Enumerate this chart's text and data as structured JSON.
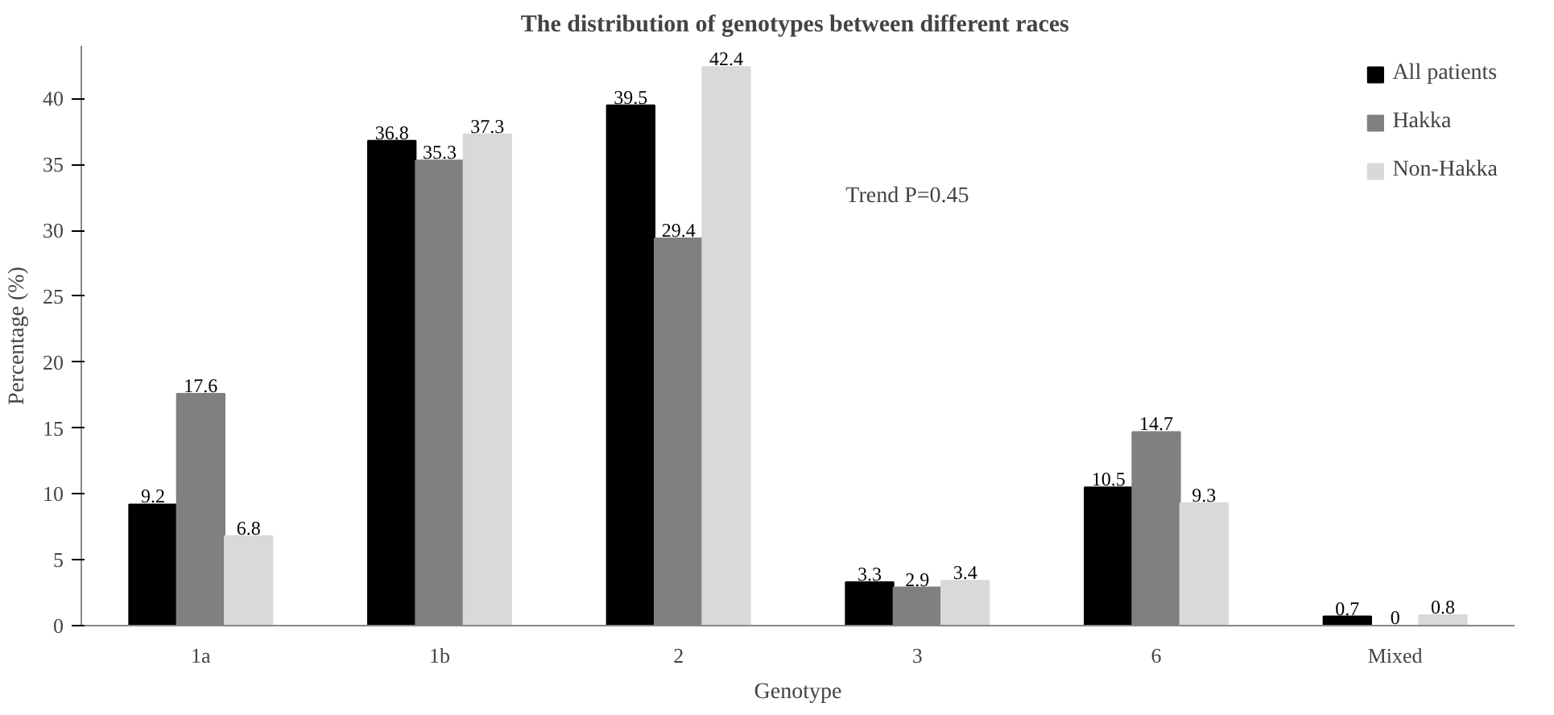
{
  "chart_data": {
    "type": "bar",
    "title": "The distribution  of genotypes between different races",
    "xlabel": "Genotype",
    "ylabel": "Percentage (%)",
    "categories": [
      "1a",
      "1b",
      "2",
      "3",
      "6",
      "Mixed"
    ],
    "series": [
      {
        "name": "All patients",
        "color": "#000000",
        "values": [
          9.2,
          36.8,
          39.5,
          3.3,
          10.5,
          0.7
        ]
      },
      {
        "name": "Hakka",
        "color": "#808080",
        "values": [
          17.6,
          35.3,
          29.4,
          2.9,
          14.7,
          0
        ]
      },
      {
        "name": "Non-Hakka",
        "color": "#d9d9d9",
        "values": [
          6.8,
          37.3,
          42.4,
          3.4,
          9.3,
          0.8
        ]
      }
    ],
    "ylim": [
      0,
      44
    ],
    "yticks": [
      0,
      5,
      10,
      15,
      20,
      25,
      30,
      35,
      40
    ],
    "annotations": [
      "Trend P=0.45"
    ],
    "data_labels": true,
    "grid": false,
    "legend": "top right"
  }
}
